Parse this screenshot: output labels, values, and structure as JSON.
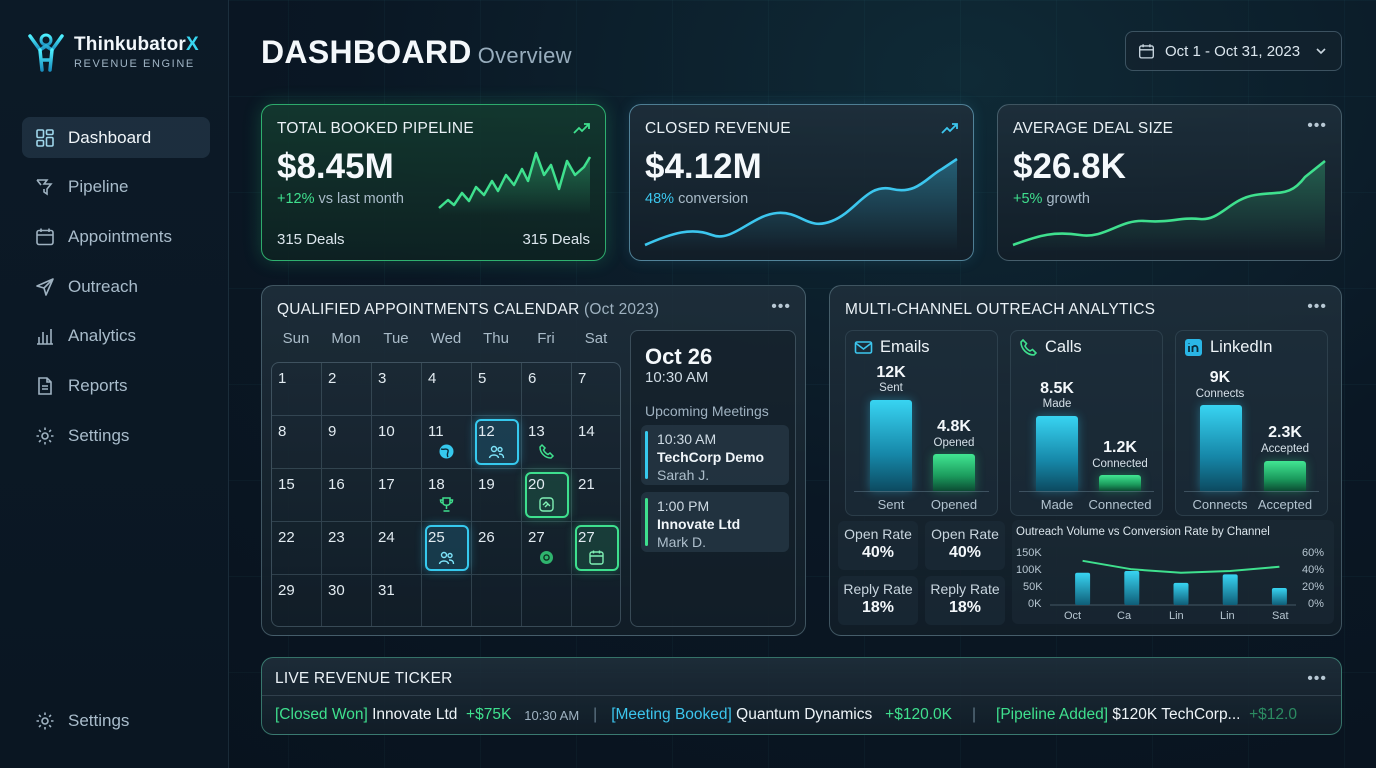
{
  "brand": {
    "name": "Thinkubator",
    "name_accent": "X",
    "subtitle": "REVENUE ENGINE"
  },
  "nav": {
    "items": [
      {
        "label": "Dashboard",
        "icon": "dashboard-icon",
        "active": true
      },
      {
        "label": "Pipeline",
        "icon": "funnel-icon"
      },
      {
        "label": "Appointments",
        "icon": "calendar-icon"
      },
      {
        "label": "Outreach",
        "icon": "send-icon"
      },
      {
        "label": "Analytics",
        "icon": "bar-chart-icon"
      },
      {
        "label": "Reports",
        "icon": "document-icon"
      },
      {
        "label": "Settings",
        "icon": "gear-icon"
      }
    ],
    "bottom": {
      "label": "Settings",
      "icon": "gear-icon"
    }
  },
  "header": {
    "title": "DASHBOARD",
    "subtitle": "Overview",
    "date_range": "Oct 1 - Oct 31, 2023"
  },
  "kpis": {
    "pipeline": {
      "title": "TOTAL BOOKED PIPELINE",
      "value": "$8.45M",
      "delta": "+12%",
      "delta_text": "vs last month",
      "foot_left": "315 Deals",
      "foot_right": "315 Deals"
    },
    "revenue": {
      "title": "CLOSED REVENUE",
      "value": "$4.12M",
      "delta": "48%",
      "delta_text": "conversion"
    },
    "deal": {
      "title": "AVERAGE DEAL SIZE",
      "value": "$26.8K",
      "delta": "+5%",
      "delta_text": "growth"
    }
  },
  "calendar": {
    "title": "QUALIFIED APPOINTMENTS CALENDAR",
    "title_suffix": "(Oct 2023)",
    "days_of_week": [
      "Sun",
      "Mon",
      "Tue",
      "Wed",
      "Thu",
      "Fri",
      "Sat"
    ],
    "weeks": [
      [
        "1",
        "2",
        "3",
        "4",
        "5",
        "6",
        "7"
      ],
      [
        "8",
        "9",
        "10",
        "11",
        "12",
        "13",
        "14"
      ],
      [
        "15",
        "16",
        "17",
        "18",
        "19",
        "20",
        "21"
      ],
      [
        "22",
        "23",
        "24",
        "25",
        "26",
        "27",
        "27"
      ],
      [
        "29",
        "30",
        "31",
        "",
        "",
        "",
        ""
      ]
    ],
    "upcoming": {
      "date": "Oct 26",
      "time": "10:30 AM",
      "label": "Upcoming Meetings",
      "meetings": [
        {
          "time": "10:30 AM",
          "name": "TechCorp Demo",
          "person": "Sarah J.",
          "color": "#36c9ee"
        },
        {
          "time": "1:00 PM",
          "name": "Innovate Ltd",
          "person": "Mark D.",
          "color": "#3ee08e"
        }
      ]
    }
  },
  "outreach": {
    "title": "MULTI-CHANNEL OUTREACH ANALYTICS",
    "channels": [
      {
        "name": "Emails",
        "icon": "mail-icon",
        "v1": "12K",
        "l1": "Sent",
        "v2": "4.8K",
        "l2": "Opened",
        "x1": "Sent",
        "x2": "Opened"
      },
      {
        "name": "Calls",
        "icon": "phone-icon",
        "v1": "8.5K",
        "l1": "Made",
        "v2": "1.2K",
        "l2": "Connected",
        "x1": "Made",
        "x2": "Connected"
      },
      {
        "name": "LinkedIn",
        "icon": "linkedin-icon",
        "v1": "9K",
        "l1": "Connects",
        "v2": "2.3K",
        "l2": "Accepted",
        "x1": "Connects",
        "x2": "Accepted"
      }
    ],
    "rates": [
      {
        "label": "Open Rate",
        "value": "40%"
      },
      {
        "label": "Open Rate",
        "value": "40%"
      },
      {
        "label": "Reply Rate",
        "value": "18%"
      },
      {
        "label": "Reply Rate",
        "value": "18%"
      }
    ]
  },
  "chart_data": {
    "type": "bar",
    "title": "Outreach Volume vs Conversion Rate by Channel",
    "categories": [
      "Oct",
      "Ca",
      "Lin",
      "Lin",
      "Sat"
    ],
    "series": [
      {
        "values": [
          95000,
          100000,
          65000,
          90000,
          50000
        ]
      },
      {
        "values": [
          52,
          42,
          38,
          40,
          45
        ]
      }
    ],
    "y_ticks": [
      "150K",
      "100K",
      "50K",
      "0K"
    ],
    "y2_ticks": [
      "60%",
      "40%",
      "20%",
      "0%"
    ],
    "ylim": [
      0,
      150000
    ],
    "y2lim": [
      0,
      60
    ]
  },
  "ticker": {
    "title": "LIVE REVENUE TICKER",
    "items": [
      {
        "tag": "[Closed Won]",
        "tag_color": "green",
        "text": "Innovate Ltd",
        "amount": "+$75K",
        "time": "10:30 AM"
      },
      {
        "tag": "[Meeting Booked]",
        "tag_color": "cyan",
        "text": "Quantum Dynamics",
        "amount": "+$120.0K",
        "time": ""
      },
      {
        "tag": "[Pipeline Added]",
        "tag_color": "green",
        "text": "$120K TechCorp...",
        "amount": "+$12.0",
        "time": ""
      }
    ]
  },
  "colors": {
    "accent_green": "#3fe08e",
    "accent_cyan": "#3cc6ee",
    "bg": "#0a1724"
  }
}
